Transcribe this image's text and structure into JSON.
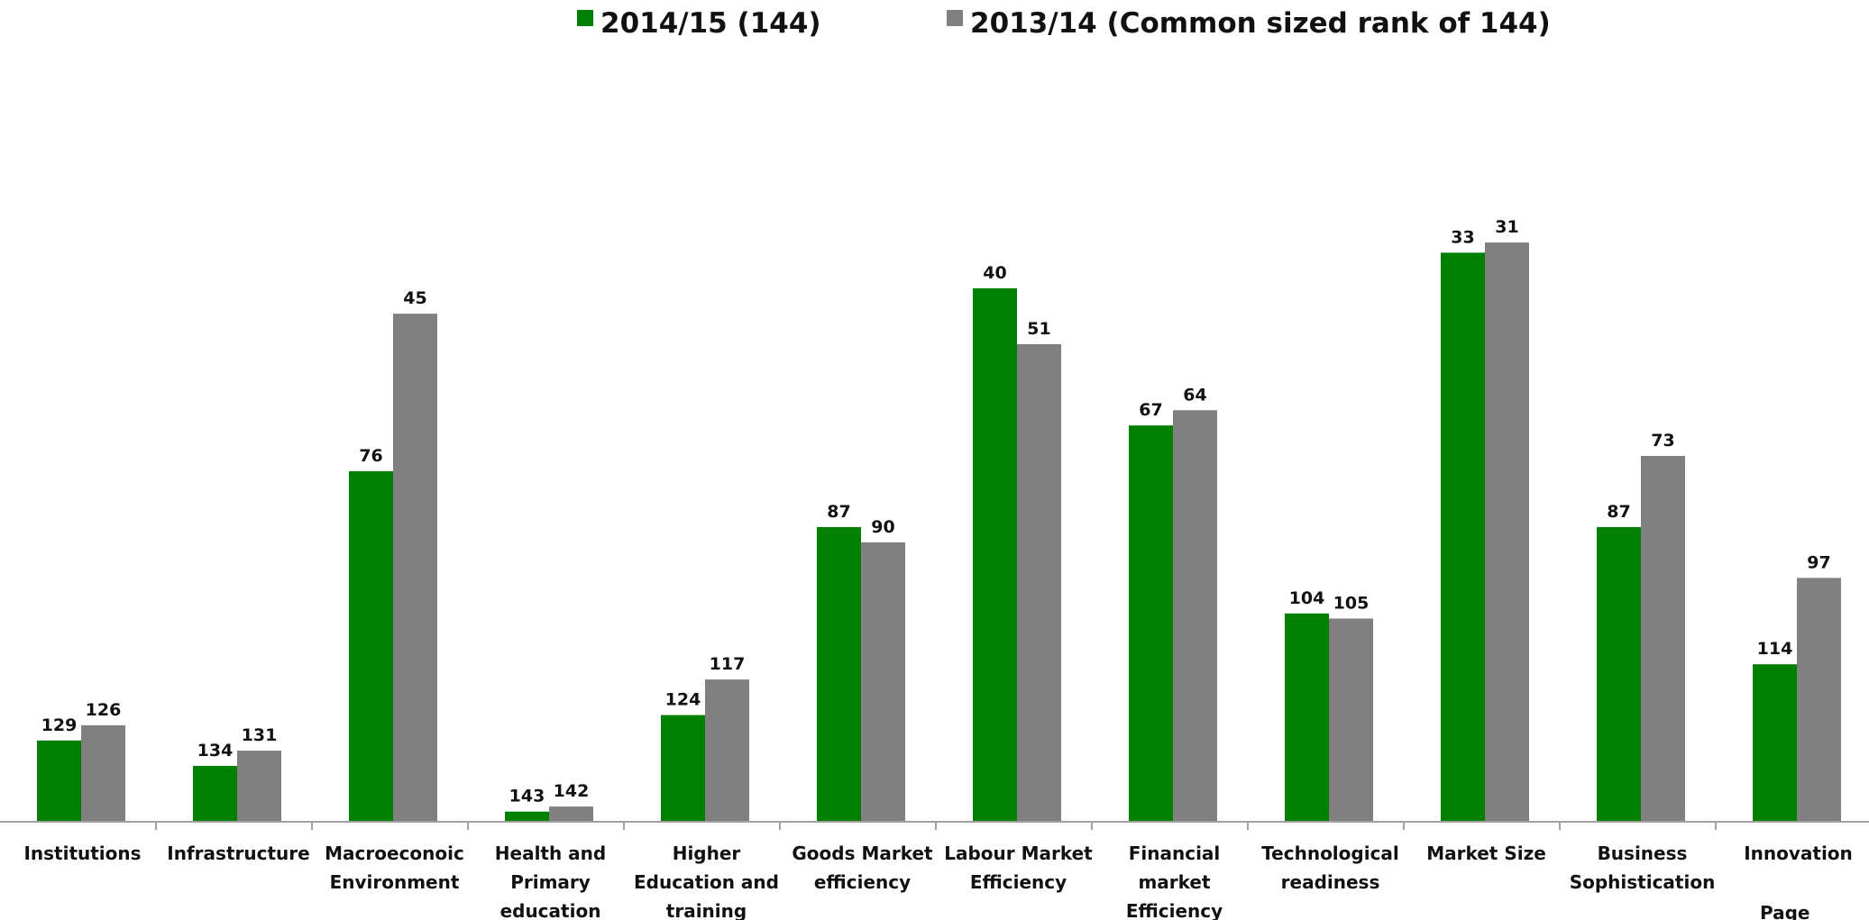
{
  "chart_data": {
    "type": "bar",
    "title": "",
    "xlabel": "",
    "ylabel": "",
    "rank_scale_max": 144,
    "categories": [
      [
        "Institutions"
      ],
      [
        "Infrastructure"
      ],
      [
        "Macroeconoic",
        "Environment"
      ],
      [
        "Health and",
        "Primary",
        "education"
      ],
      [
        "Higher",
        "Education and",
        "training"
      ],
      [
        "Goods Market",
        "efficiency"
      ],
      [
        "Labour Market",
        "Efficiency"
      ],
      [
        "Financial",
        "market",
        "Efficiency"
      ],
      [
        "Technological",
        "readiness"
      ],
      [
        "Market Size"
      ],
      [
        "Business",
        "Sophistication"
      ],
      [
        "Innovation"
      ]
    ],
    "series": [
      {
        "name": "2014/15 (144)",
        "color": "#008000",
        "values": [
          129,
          134,
          76,
          143,
          124,
          87,
          40,
          67,
          104,
          33,
          87,
          114
        ]
      },
      {
        "name": "2013/14 (Common sized rank of 144)",
        "color": "#808080",
        "values": [
          126,
          131,
          45,
          142,
          117,
          90,
          51,
          64,
          105,
          31,
          73,
          97
        ]
      }
    ],
    "legend_position": "top-center",
    "grid": false
  },
  "footer_text": "Page"
}
